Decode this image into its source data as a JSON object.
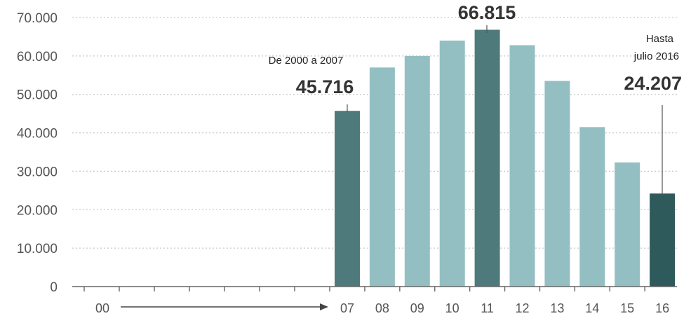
{
  "chart_data": {
    "type": "bar",
    "categories": [
      "07",
      "08",
      "09",
      "10",
      "11",
      "12",
      "13",
      "14",
      "15",
      "16"
    ],
    "values": [
      45716,
      57000,
      60000,
      64000,
      66815,
      62800,
      53500,
      41500,
      32300,
      24207
    ],
    "ylim": [
      0,
      70000
    ],
    "yticks": [
      "0",
      "10.000",
      "20.000",
      "30.000",
      "40.000",
      "50.000",
      "60.000",
      "70.000"
    ],
    "ytick_values": [
      0,
      10000,
      20000,
      30000,
      40000,
      50000,
      60000,
      70000
    ],
    "x_start_label": "00",
    "grid": true,
    "colors": {
      "highlight": "#4f7a7c",
      "last": "#2f5a5c",
      "regular": "#93bfc2",
      "axis": "#666666",
      "grid": "#c8c8c8"
    },
    "annotations": {
      "first": {
        "label": "De 2000 a 2007",
        "value": "45.716"
      },
      "max": {
        "value": "66.815"
      },
      "last": {
        "label_line1": "Hasta",
        "label_line2": "julio 2016",
        "value": "24.207"
      }
    }
  }
}
